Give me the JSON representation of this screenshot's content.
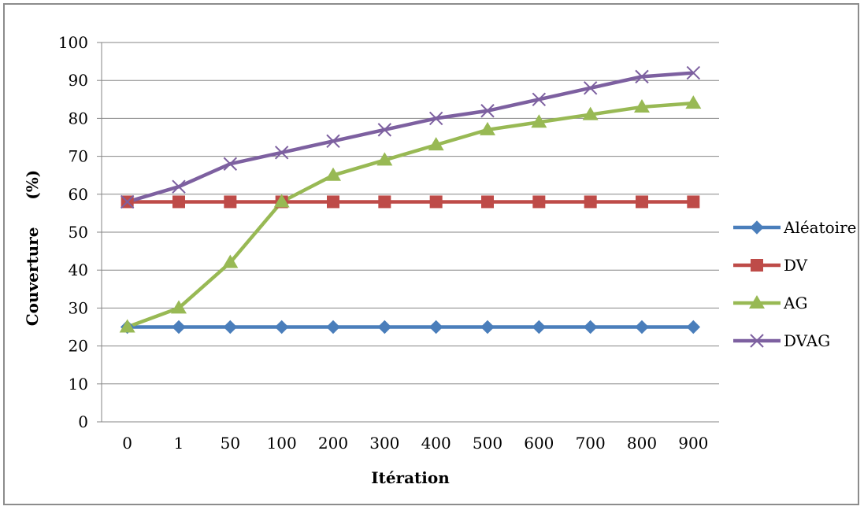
{
  "chart_data": {
    "type": "line",
    "title": "",
    "xlabel": "Itération",
    "ylabel": "Couverture     (%)",
    "categories": [
      "0",
      "1",
      "50",
      "100",
      "200",
      "300",
      "400",
      "500",
      "600",
      "700",
      "800",
      "900"
    ],
    "ylim": [
      0,
      100
    ],
    "yticks": [
      "0",
      "10",
      "20",
      "30",
      "40",
      "50",
      "60",
      "70",
      "80",
      "90",
      "100"
    ],
    "grid": "horizontal",
    "legend_position": "right",
    "series": [
      {
        "name": "Aléatoire",
        "color": "#4a7ebb",
        "marker": "diamond",
        "values": [
          25,
          25,
          25,
          25,
          25,
          25,
          25,
          25,
          25,
          25,
          25,
          25
        ]
      },
      {
        "name": "DV",
        "color": "#be4b48",
        "marker": "square",
        "values": [
          58,
          58,
          58,
          58,
          58,
          58,
          58,
          58,
          58,
          58,
          58,
          58
        ]
      },
      {
        "name": "AG",
        "color": "#98b954",
        "marker": "triangle",
        "values": [
          25,
          30,
          42,
          58,
          65,
          69,
          73,
          77,
          79,
          81,
          83,
          84
        ]
      },
      {
        "name": "DVAG",
        "color": "#7d60a0",
        "marker": "x",
        "values": [
          58,
          62,
          68,
          71,
          74,
          77,
          80,
          82,
          85,
          88,
          91,
          92
        ]
      }
    ]
  }
}
